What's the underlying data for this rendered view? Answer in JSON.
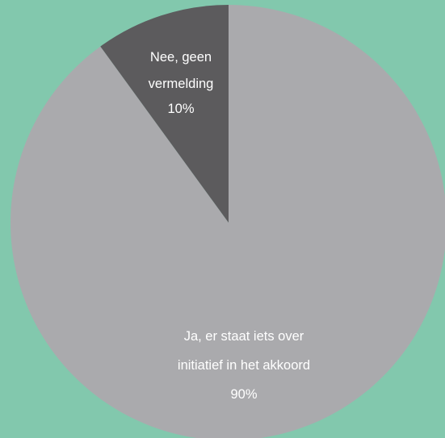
{
  "chart_data": {
    "type": "pie",
    "title": "",
    "start_angle_deg": 0,
    "direction": "clockwise",
    "background_color": "#82c8ad",
    "slices": [
      {
        "label_lines": [
          "Ja, er staat iets over",
          "initiatief in het akkoord"
        ],
        "value_label": "90%",
        "value": 90,
        "color": "#aaaaad"
      },
      {
        "label_lines": [
          "Nee, geen",
          "vermelding"
        ],
        "value_label": "10%",
        "value": 10,
        "color": "#5c5b5d"
      }
    ]
  }
}
